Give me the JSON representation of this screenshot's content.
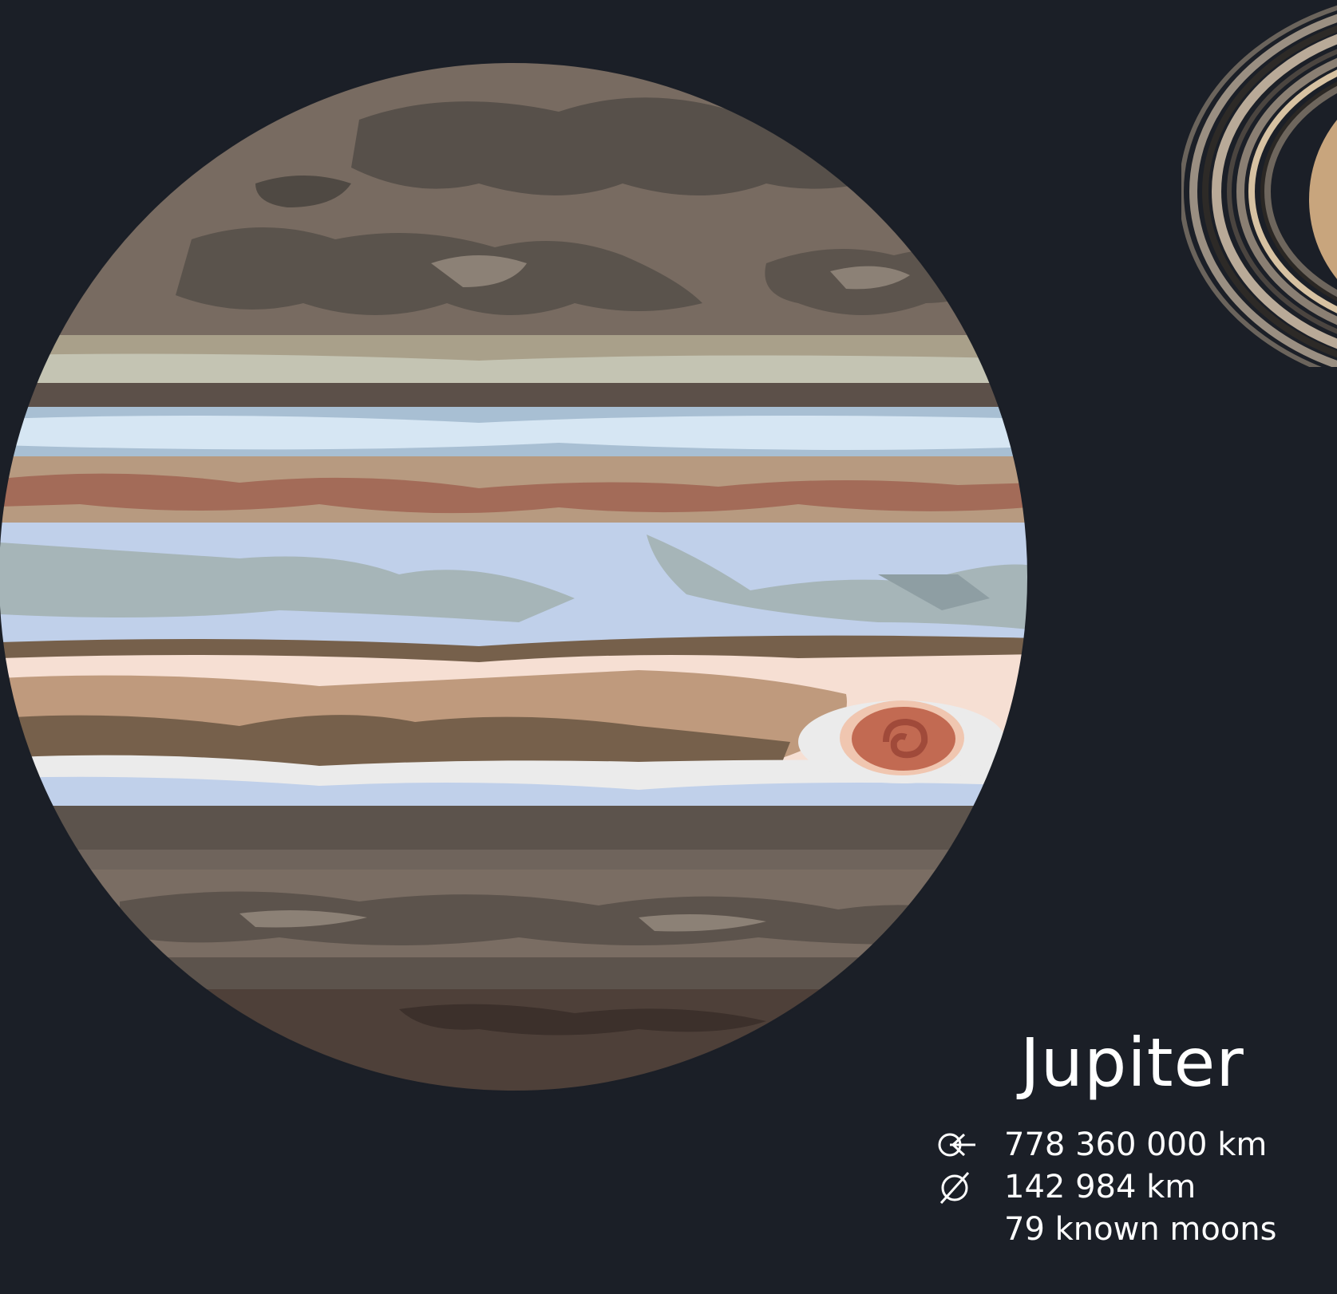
{
  "planet": {
    "name": "Jupiter",
    "stats": [
      {
        "icon": "orbit-distance-icon",
        "value": "778 360 000 km"
      },
      {
        "icon": "diameter-icon",
        "value": "142 984 km"
      },
      {
        "icon": "",
        "value": "79 known moons"
      }
    ]
  },
  "colors": {
    "background": "#1b1f27",
    "text": "#ffffff"
  },
  "neighbor_planet": "saturn-rings-partial"
}
